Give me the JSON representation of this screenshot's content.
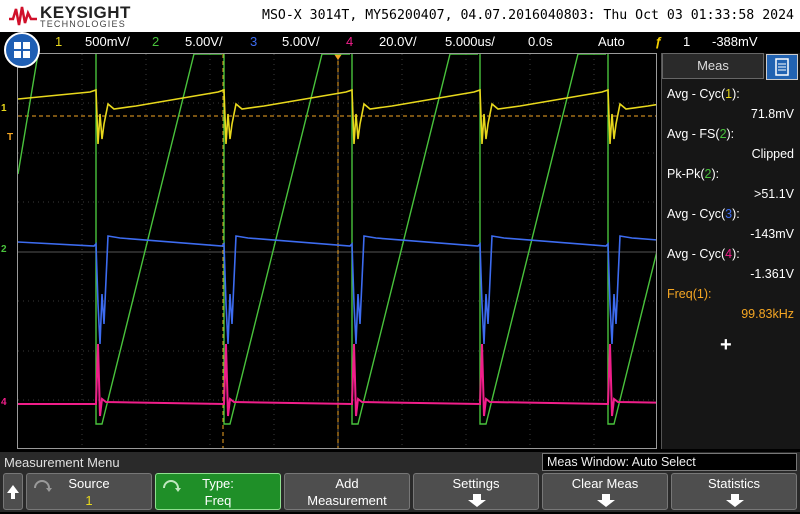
{
  "header": {
    "brand": "KEYSIGHT",
    "brand_sub": "TECHNOLOGIES",
    "instrument": "MSO-X 3014T, MY56200407, 04.07.2016040803: Thu Oct 03 01:33:58 2024"
  },
  "channels": {
    "ch1": {
      "num": "1",
      "scale": "500mV/",
      "color": "#e8d81c"
    },
    "ch2": {
      "num": "2",
      "scale": "5.00V/",
      "color": "#49c23c"
    },
    "ch3": {
      "num": "3",
      "scale": "5.00V/",
      "color": "#3d6cf0"
    },
    "ch4": {
      "num": "4",
      "scale": "20.0V/",
      "color": "#f01e8a"
    }
  },
  "timebase": {
    "scale": "5.000us/",
    "delay": "0.0s"
  },
  "trigger": {
    "mode": "Auto",
    "source": "1",
    "level": "-388mV"
  },
  "markers": {
    "ch1": "1",
    "trig": "T",
    "ch2": "2",
    "ch4": "4"
  },
  "meas": {
    "title": "Meas",
    "items": [
      {
        "label_pre": "Avg - Cyc(",
        "label_ch": "1",
        "label_post": "):",
        "value": "71.8mV",
        "color": "#e8d81c"
      },
      {
        "label_pre": "Avg - FS(",
        "label_ch": "2",
        "label_post": "):",
        "value": "Clipped",
        "color": "#49c23c"
      },
      {
        "label_pre": "Pk-Pk(",
        "label_ch": "2",
        "label_post": "):",
        "value": ">51.1V",
        "color": "#49c23c"
      },
      {
        "label_pre": "Avg - Cyc(",
        "label_ch": "3",
        "label_post": "):",
        "value": "-143mV",
        "color": "#3d6cf0"
      },
      {
        "label_pre": "Avg - Cyc(",
        "label_ch": "4",
        "label_post": "):",
        "value": "-1.361V",
        "color": "#f01e8a"
      },
      {
        "label_pre": "Freq(1):",
        "label_ch": "",
        "label_post": "",
        "value": "99.83kHz",
        "color": "#f5a623",
        "highlight": true
      }
    ],
    "add_symbol": "+"
  },
  "menu": {
    "title": "Measurement Menu",
    "meas_window": "Meas Window: Auto Select",
    "softkeys": [
      {
        "l1": "Source",
        "l2": "1"
      },
      {
        "l1": "Type:",
        "l2": "Freq"
      },
      {
        "l1": "Add",
        "l2": "Measurement"
      },
      {
        "l1": "Settings",
        "l2": ""
      },
      {
        "l1": "Clear Meas",
        "l2": ""
      },
      {
        "l1": "Statistics",
        "l2": ""
      }
    ]
  }
}
